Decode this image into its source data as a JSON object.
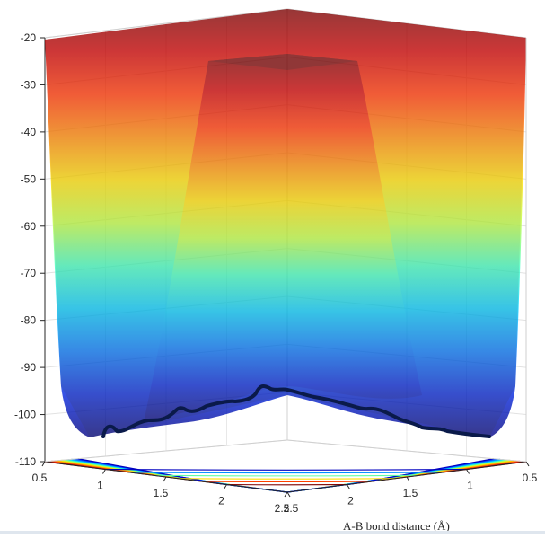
{
  "chart_data": {
    "type": "surface",
    "title": "",
    "xlabel": "A-B bond distance (Å)",
    "ylabel": "",
    "zlabel": "",
    "xlim": [
      0.5,
      2.5
    ],
    "ylim": [
      0.5,
      2.5
    ],
    "zlim": [
      -110,
      -20
    ],
    "x_ticks": [
      "0.5",
      "1",
      "1.5",
      "2",
      "2.5"
    ],
    "y_ticks": [
      "0.5",
      "1",
      "1.5",
      "2",
      "2.5"
    ],
    "z_ticks": [
      "-20",
      "-30",
      "-40",
      "-50",
      "-60",
      "-70",
      "-80",
      "-90",
      "-100",
      "-110"
    ],
    "colormap": "jet",
    "surface_alpha": 0.75,
    "contour_projection": true,
    "grid": true,
    "trajectory": {
      "color": "#0a1a4a",
      "min_energy": -104,
      "description_points": [
        {
          "dist_A": 0.55,
          "dist_B": 2.5,
          "energy": -104
        },
        {
          "dist_A": 1.3,
          "dist_B": 2.3,
          "energy": -102
        },
        {
          "dist_A": 2.5,
          "dist_B": 2.5,
          "energy": -94
        },
        {
          "dist_A": 2.3,
          "dist_B": 1.3,
          "energy": -102
        },
        {
          "dist_A": 2.5,
          "dist_B": 0.55,
          "energy": -104
        }
      ]
    }
  }
}
